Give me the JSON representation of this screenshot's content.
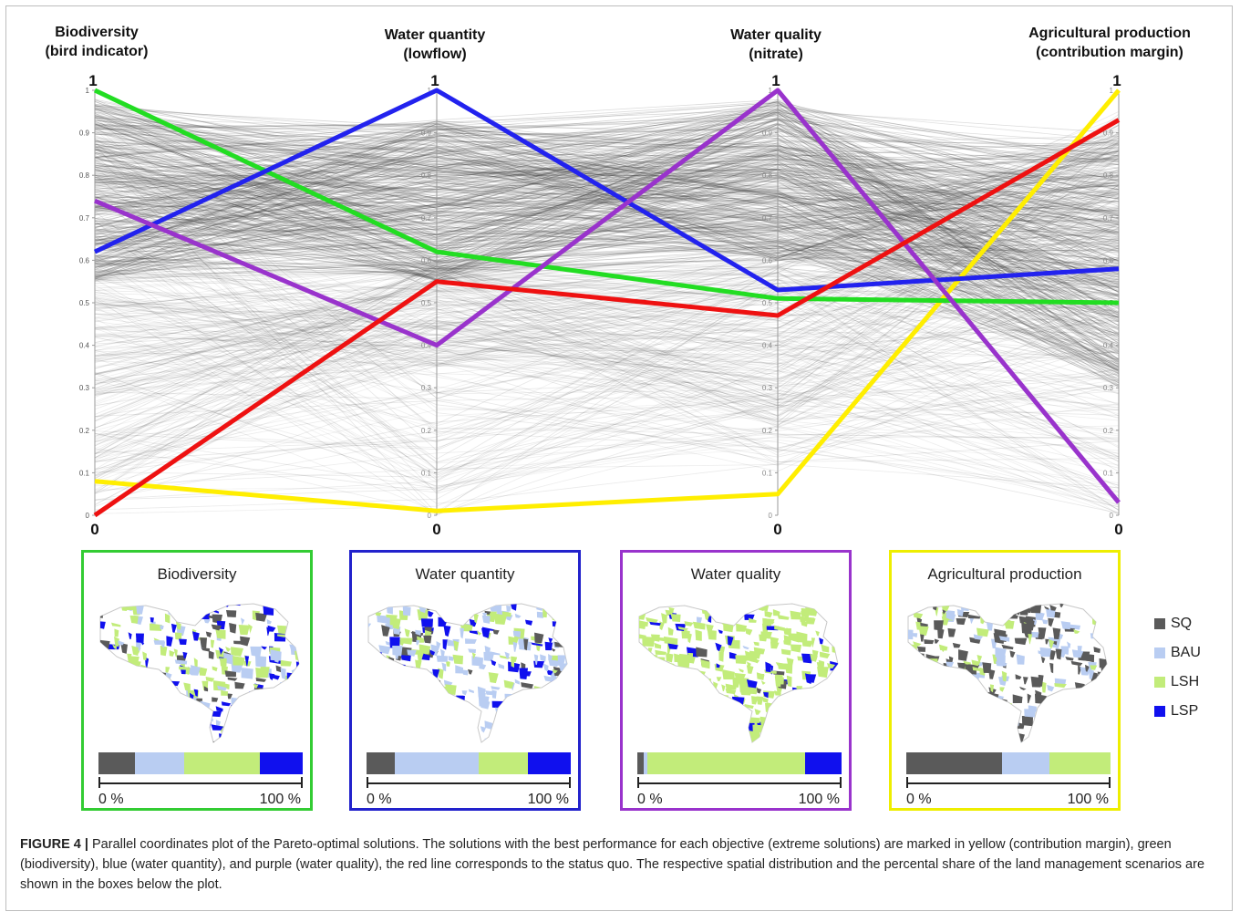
{
  "chart_data": {
    "type": "parallel-coordinates",
    "axes": [
      {
        "title_line1": "Biodiversity",
        "title_line2": "(bird indicator)",
        "top_label": "1",
        "bottom_label": "0"
      },
      {
        "title_line1": "Water quantity",
        "title_line2": "(lowflow)",
        "top_label": "1",
        "bottom_label": "0"
      },
      {
        "title_line1": "Water quality",
        "title_line2": "(nitrate)",
        "top_label": "1",
        "bottom_label": "0"
      },
      {
        "title_line1": "Agricultural production",
        "title_line2": "(contribution margin)",
        "top_label": "1",
        "bottom_label": "0"
      }
    ],
    "ticks": [
      "0",
      "0.1",
      "0.2",
      "0.3",
      "0.4",
      "0.5",
      "0.6",
      "0.7",
      "0.8",
      "0.9",
      "1"
    ],
    "ylim": [
      0,
      1
    ],
    "highlighted_solutions": [
      {
        "color": "#ffee00",
        "values": [
          0.08,
          0.01,
          0.05,
          1.0
        ]
      },
      {
        "color": "#22dd22",
        "values": [
          1.0,
          0.62,
          0.51,
          0.5
        ]
      },
      {
        "color": "#2222ee",
        "values": [
          0.62,
          1.0,
          0.53,
          0.58
        ]
      },
      {
        "color": "#9933cc",
        "values": [
          0.74,
          0.4,
          1.0,
          0.03
        ]
      },
      {
        "color": "#ee1111",
        "values": [
          0.0,
          0.55,
          0.47,
          0.93
        ]
      }
    ]
  },
  "panels": [
    {
      "title": "Biodiversity",
      "border_color": "#33cc33",
      "shares": [
        0.18,
        0.24,
        0.37,
        0.21
      ],
      "scale_left": "0 %",
      "scale_right": "100 %"
    },
    {
      "title": "Water quantity",
      "border_color": "#2222cc",
      "shares": [
        0.14,
        0.41,
        0.24,
        0.21
      ],
      "scale_left": "0 %",
      "scale_right": "100 %"
    },
    {
      "title": "Water quality",
      "border_color": "#9933cc",
      "shares": [
        0.03,
        0.02,
        0.77,
        0.18
      ],
      "scale_left": "0 %",
      "scale_right": "100 %"
    },
    {
      "title": "Agricultural production",
      "border_color": "#eeee00",
      "shares": [
        0.47,
        0.23,
        0.3,
        0.0
      ],
      "scale_left": "0 %",
      "scale_right": "100 %"
    }
  ],
  "legend": [
    {
      "label": "SQ",
      "color": "#5a5a5a"
    },
    {
      "label": "BAU",
      "color": "#b9cdf2"
    },
    {
      "label": "LSH",
      "color": "#c2ec7a"
    },
    {
      "label": "LSP",
      "color": "#1010ee"
    }
  ],
  "caption": {
    "label": "FIGURE 4 |",
    "text": "Parallel coordinates plot of the Pareto-optimal solutions. The solutions with the best performance for each objective (extreme solutions) are marked in yellow (contribution margin), green (biodiversity), blue (water quantity), and purple (water quality), the red line corresponds to the status quo. The respective spatial distribution and the percental share of the land management scenarios are shown in the boxes below the plot."
  }
}
